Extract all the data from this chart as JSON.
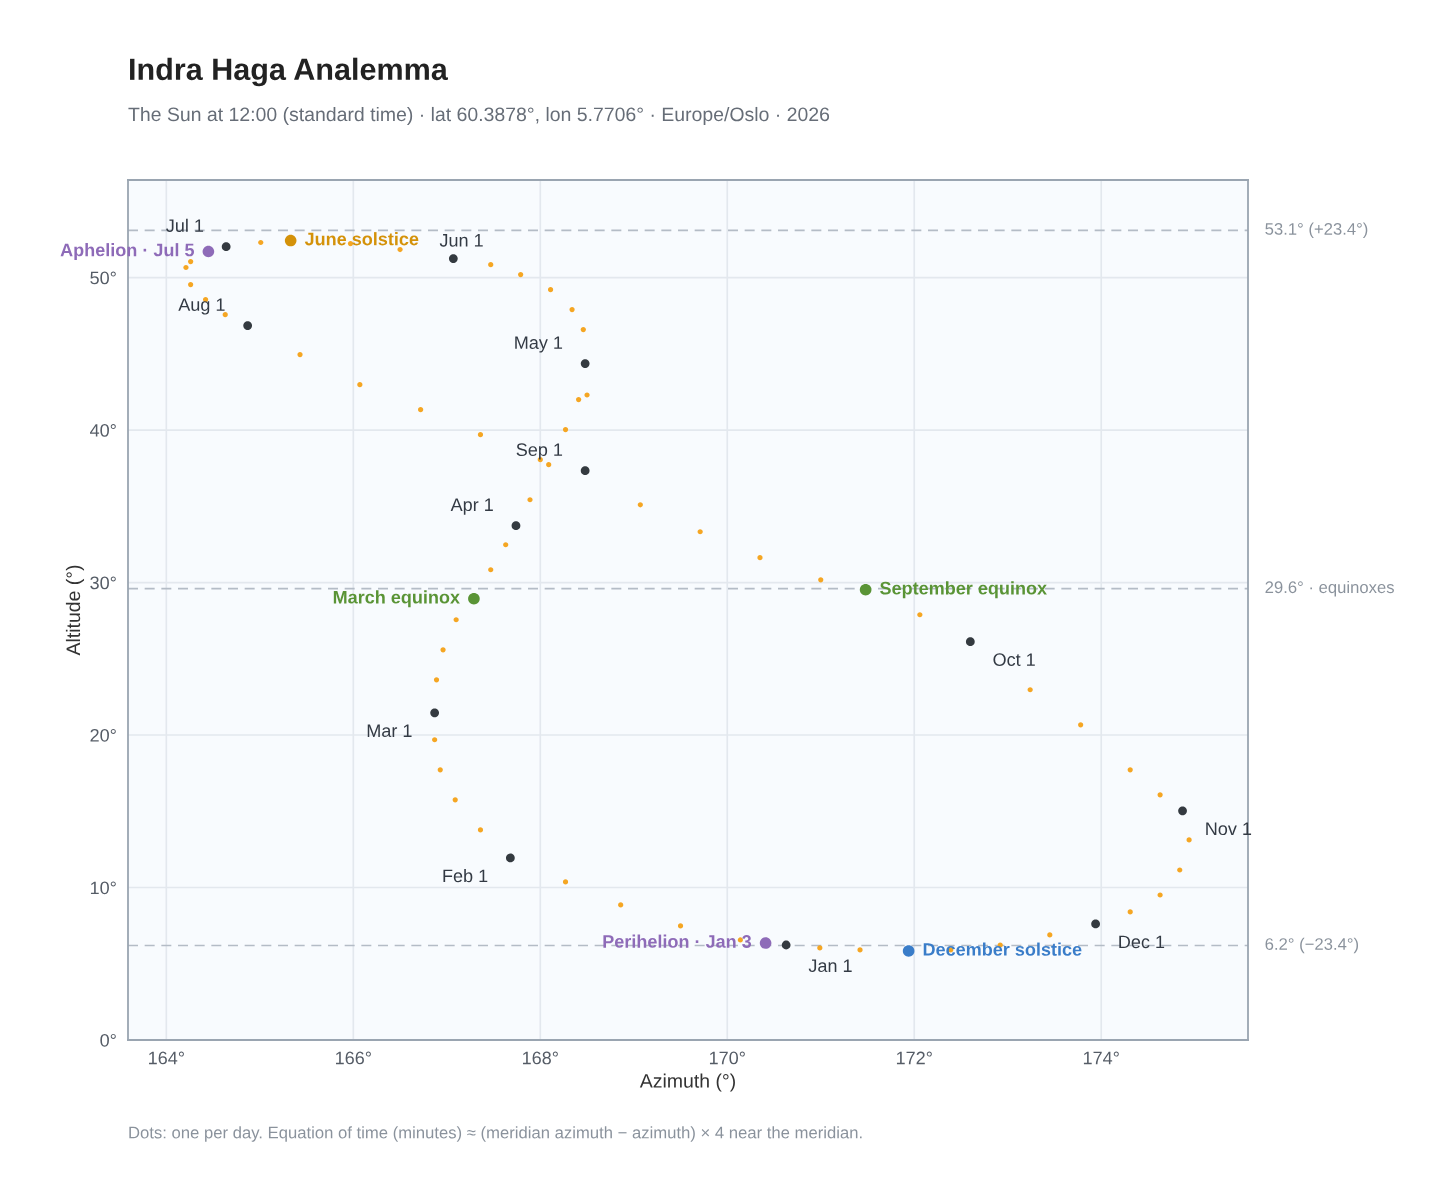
{
  "chart_data": {
    "type": "scatter",
    "title": "Indra Haga Analemma",
    "subtitle": "The Sun at 12:00 (standard time) · lat 60.3878°, lon 5.7706° · Europe/Oslo · 2026",
    "xlabel": "Azimuth (°)",
    "ylabel": "Altitude (°)",
    "xlim": [
      163.59,
      175.57
    ],
    "ylim": [
      0,
      56.4
    ],
    "xticks": [
      {
        "value": 164,
        "label": "164°"
      },
      {
        "value": 166,
        "label": "166°"
      },
      {
        "value": 168,
        "label": "168°"
      },
      {
        "value": 170,
        "label": "170°"
      },
      {
        "value": 172,
        "label": "172°"
      },
      {
        "value": 174,
        "label": "174°"
      }
    ],
    "yticks": [
      {
        "value": 0,
        "label": "0°"
      },
      {
        "value": 10,
        "label": "10°"
      },
      {
        "value": 20,
        "label": "20°"
      },
      {
        "value": 30,
        "label": "30°"
      },
      {
        "value": 40,
        "label": "40°"
      },
      {
        "value": 50,
        "label": "50°"
      }
    ],
    "grid": true,
    "legend": false,
    "marker": "circle",
    "series": [
      {
        "color": "#f5a623",
        "x": [
          170.14,
          169.5,
          168.86,
          168.27,
          167.36,
          167.09,
          166.93,
          166.87,
          166.89,
          166.96,
          167.1,
          167.47,
          167.63,
          167.89,
          168.09,
          168.27,
          168.41,
          168.5,
          168.46,
          168.34,
          168.11,
          167.79,
          167.47,
          166.5,
          165.97,
          165.01,
          164.21,
          164.26,
          164.26,
          164.42,
          164.63,
          165.43,
          166.07,
          166.72,
          167.36,
          168.0,
          169.07,
          169.71,
          170.35,
          171.0,
          172.06,
          173.24,
          173.78,
          174.31,
          174.63,
          174.94,
          174.84,
          174.63,
          174.31,
          173.45,
          172.92,
          172.39,
          171.42,
          170.99
        ],
        "values": [
          6.56,
          7.48,
          8.86,
          10.37,
          13.78,
          15.75,
          17.72,
          19.69,
          23.62,
          25.59,
          27.56,
          30.84,
          32.48,
          35.43,
          37.73,
          40.03,
          42.0,
          42.3,
          46.59,
          47.9,
          49.21,
          50.2,
          50.85,
          51.84,
          52.23,
          52.3,
          50.66,
          51.05,
          49.54,
          48.56,
          47.57,
          44.95,
          42.98,
          41.34,
          39.7,
          38.06,
          35.1,
          33.33,
          31.63,
          30.18,
          27.89,
          22.97,
          20.67,
          17.72,
          16.08,
          13.12,
          11.15,
          9.51,
          8.4,
          6.89,
          6.23,
          5.91,
          5.91,
          6.04
        ]
      },
      {
        "color": "#343a40",
        "x": [
          170.63,
          167.68,
          166.87,
          167.74,
          168.48,
          167.07,
          164.64,
          164.87,
          168.48,
          172.6,
          174.87,
          173.94
        ],
        "values": [
          6.23,
          11.94,
          21.46,
          33.73,
          44.36,
          51.25,
          52.03,
          46.85,
          37.34,
          26.12,
          15.03,
          7.61
        ]
      },
      {
        "name": "March equinox",
        "color": "#5a9436",
        "x": [
          167.29
        ],
        "values": [
          28.94
        ]
      },
      {
        "name": "September equinox",
        "color": "#5a9436",
        "x": [
          171.48
        ],
        "values": [
          29.53
        ]
      },
      {
        "name": "June solstice",
        "color": "#d4920a",
        "x": [
          165.33
        ],
        "values": [
          52.43
        ]
      },
      {
        "name": "December solstice",
        "color": "#3a7dc9",
        "x": [
          171.94
        ],
        "values": [
          5.84
        ]
      },
      {
        "name": "Perihelion · Jan 3",
        "color": "#8e6bb8",
        "x": [
          170.41
        ],
        "values": [
          6.36
        ]
      },
      {
        "name": "Aphelion · Jul 5",
        "color": "#8e6bb8",
        "x": [
          164.45
        ],
        "values": [
          51.71
        ]
      }
    ],
    "ref_lines": [
      {
        "axis": "y",
        "value": 53.1,
        "label": "53.1° (+23.4°)",
        "color": "#b4bcc6",
        "line_style": "dashed"
      },
      {
        "axis": "y",
        "value": 29.6,
        "label": "29.6° · equinoxes",
        "color": "#b4bcc6",
        "line_style": "dashed"
      },
      {
        "axis": "y",
        "value": 6.2,
        "label": "6.2° (−23.4°)",
        "color": "#b4bcc6",
        "line_style": "dashed"
      }
    ],
    "annotations": [
      {
        "text": "Jan 1",
        "x": 170.63,
        "y": 6.23
      },
      {
        "text": "Feb 1",
        "x": 167.68,
        "y": 11.94
      },
      {
        "text": "Mar 1",
        "x": 166.87,
        "y": 21.46
      },
      {
        "text": "Apr 1",
        "x": 167.74,
        "y": 33.73
      },
      {
        "text": "May 1",
        "x": 168.48,
        "y": 44.36
      },
      {
        "text": "Jun 1",
        "x": 167.07,
        "y": 51.25
      },
      {
        "text": "Jul 1",
        "x": 164.64,
        "y": 52.03
      },
      {
        "text": "Aug 1",
        "x": 164.87,
        "y": 46.85
      },
      {
        "text": "Sep 1",
        "x": 168.48,
        "y": 37.34
      },
      {
        "text": "Oct 1",
        "x": 172.6,
        "y": 26.12
      },
      {
        "text": "Nov 1",
        "x": 174.87,
        "y": 15.03
      },
      {
        "text": "Dec 1",
        "x": 173.94,
        "y": 7.61
      },
      "Dots: one per day. Equation of time (minutes) ≈ (meridian azimuth − azimuth) × 4 near the meridian."
    ]
  }
}
